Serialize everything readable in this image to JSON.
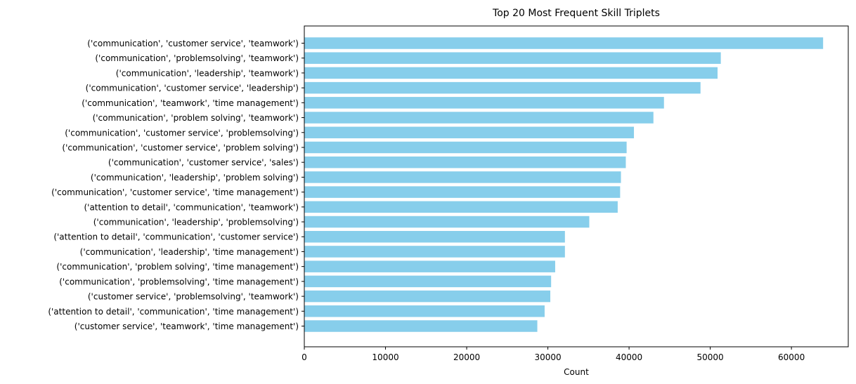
{
  "chart_data": {
    "type": "bar",
    "orientation": "horizontal",
    "title": "Top 20 Most Frequent Skill Triplets",
    "xlabel": "Count",
    "ylabel": "",
    "xlim": [
      0,
      67000
    ],
    "xticks": [
      0,
      10000,
      20000,
      30000,
      40000,
      50000,
      60000
    ],
    "grid": false,
    "bar_color": "#87CEEB",
    "categories": [
      "('communication', 'customer service', 'teamwork')",
      "('communication', 'problemsolving', 'teamwork')",
      "('communication', 'leadership', 'teamwork')",
      "('communication', 'customer service', 'leadership')",
      "('communication', 'teamwork', 'time management')",
      "('communication', 'problem solving', 'teamwork')",
      "('communication', 'customer service', 'problemsolving')",
      "('communication', 'customer service', 'problem solving')",
      "('communication', 'customer service', 'sales')",
      "('communication', 'leadership', 'problem solving')",
      "('communication', 'customer service', 'time management')",
      "('attention to detail', 'communication', 'teamwork')",
      "('communication', 'leadership', 'problemsolving')",
      "('attention to detail', 'communication', 'customer service')",
      "('communication', 'leadership', 'time management')",
      "('communication', 'problem solving', 'time management')",
      "('communication', 'problemsolving', 'time management')",
      "('customer service', 'problemsolving', 'teamwork')",
      "('attention to detail', 'communication', 'time management')",
      "('customer service', 'teamwork', 'time management')"
    ],
    "values": [
      63900,
      51300,
      50900,
      48800,
      44300,
      43000,
      40600,
      39700,
      39600,
      39000,
      38900,
      38600,
      35100,
      32100,
      32100,
      30900,
      30400,
      30300,
      29600,
      28700
    ]
  }
}
